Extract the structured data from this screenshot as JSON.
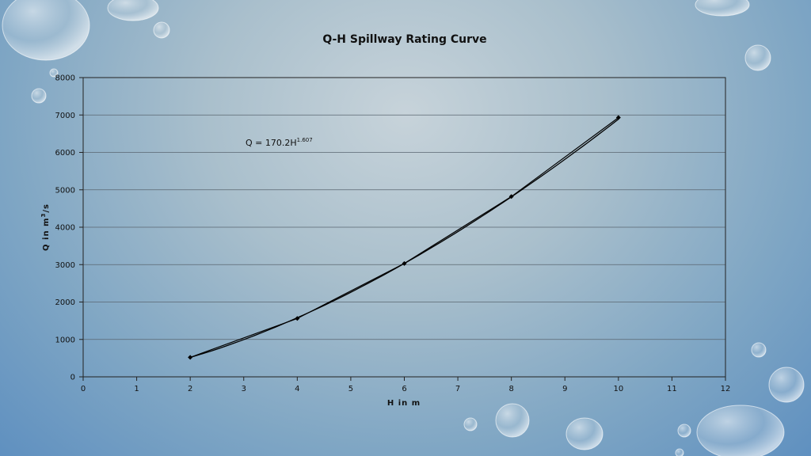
{
  "chart_data": {
    "type": "scatter",
    "title": "Q-H Spillway Rating Curve",
    "xlabel": "H in m",
    "ylabel": "Q in m",
    "ylabel_sup": "3",
    "ylabel_suffix": "/s",
    "xlim": [
      0,
      12
    ],
    "ylim": [
      0,
      8000
    ],
    "x_ticks": [
      0,
      1,
      2,
      3,
      4,
      5,
      6,
      7,
      8,
      9,
      10,
      11,
      12
    ],
    "y_ticks": [
      0,
      1000,
      2000,
      3000,
      4000,
      5000,
      6000,
      7000,
      8000
    ],
    "grid": "horizontal",
    "series": [
      {
        "x": [
          2,
          4,
          6,
          8,
          10
        ],
        "y": [
          520,
          1560,
          3030,
          4820,
          6930
        ]
      }
    ],
    "trendline": {
      "equation": "Q = 170.2H",
      "exponent": "1.607",
      "coefficient": 170.2,
      "power": 1.607
    },
    "colors": {
      "marker": "#000000",
      "line": "#000000"
    }
  }
}
